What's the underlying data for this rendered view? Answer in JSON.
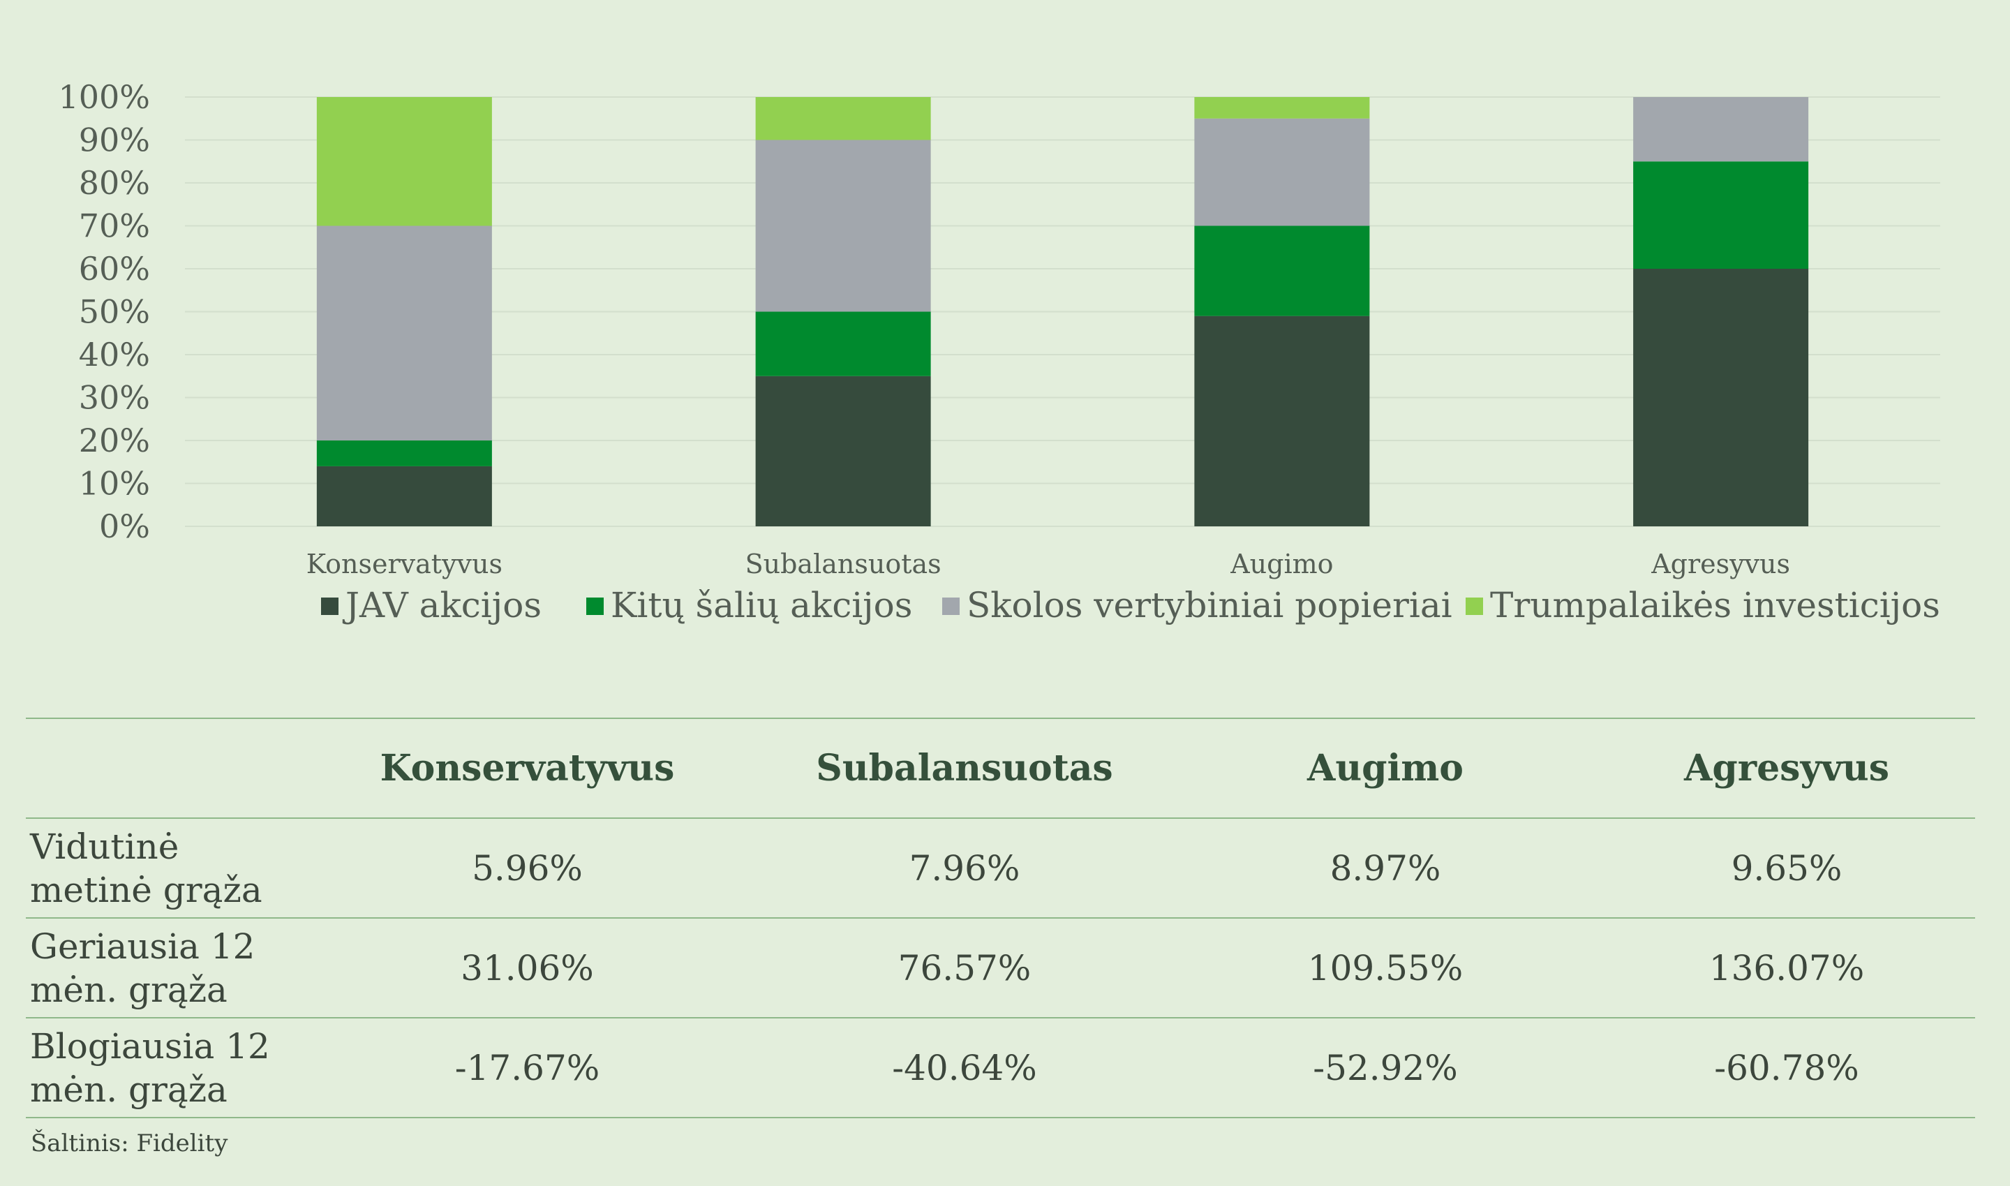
{
  "chart_data": {
    "type": "bar",
    "stacked": true,
    "categories": [
      "Konservatyvus",
      "Subalansuotas",
      "Augimo",
      "Agresyvus"
    ],
    "series": [
      {
        "name": "JAV akcijos",
        "color": "#364b3d",
        "values": [
          14,
          35,
          49,
          60
        ]
      },
      {
        "name": "Kitų šalių akcijos",
        "color": "#008a2e",
        "values": [
          6,
          15,
          21,
          25
        ]
      },
      {
        "name": "Skolos vertybiniai popieriai",
        "color": "#a2a7ad",
        "values": [
          50,
          40,
          25,
          15
        ]
      },
      {
        "name": "Trumpalaikės investicijos",
        "color": "#92d050",
        "values": [
          30,
          10,
          5,
          0
        ]
      }
    ],
    "ylim": [
      0,
      100
    ],
    "yticks": [
      "0%",
      "10%",
      "20%",
      "30%",
      "40%",
      "50%",
      "60%",
      "70%",
      "80%",
      "90%",
      "100%"
    ],
    "grid": true,
    "legend": "bottom"
  },
  "table": {
    "headers": [
      "",
      "Konservatyvus",
      "Subalansuotas",
      "Augimo",
      "Agresyvus"
    ],
    "rows": [
      {
        "label": [
          "Vidutinė",
          "metinė grąža"
        ],
        "values": [
          "5.96%",
          "7.96%",
          "8.97%",
          "9.65%"
        ]
      },
      {
        "label": [
          "Geriausia 12",
          "mėn. grąža"
        ],
        "values": [
          "31.06%",
          "76.57%",
          "109.55%",
          "136.07%"
        ]
      },
      {
        "label": [
          "Blogiausia 12",
          "mėn. grąža"
        ],
        "values": [
          "-17.67%",
          "-40.64%",
          "-52.92%",
          "-60.78%"
        ]
      }
    ]
  },
  "source": "Šaltinis: Fidelity"
}
